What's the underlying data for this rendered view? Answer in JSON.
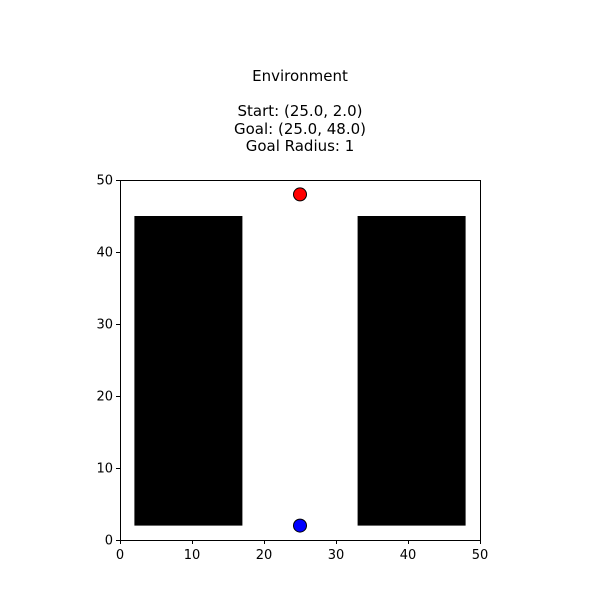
{
  "chart_data": {
    "type": "scatter",
    "title": "Environment",
    "subtitle_lines": [
      "Start: (25.0, 2.0)",
      "Goal: (25.0, 48.0)",
      "Goal Radius: 1"
    ],
    "xlabel": "",
    "ylabel": "",
    "xlim": [
      0,
      50
    ],
    "ylim": [
      0,
      50
    ],
    "xticks": [
      0,
      10,
      20,
      30,
      40,
      50
    ],
    "yticks": [
      0,
      10,
      20,
      30,
      40,
      50
    ],
    "grid": false,
    "obstacles": [
      {
        "x0": 2,
        "y0": 2,
        "x1": 17,
        "y1": 45,
        "color": "#000000"
      },
      {
        "x0": 33,
        "y0": 2,
        "x1": 48,
        "y1": 45,
        "color": "#000000"
      }
    ],
    "points": [
      {
        "role": "start",
        "x": 25.0,
        "y": 2.0,
        "color": "#0000ff"
      },
      {
        "role": "goal",
        "x": 25.0,
        "y": 48.0,
        "color": "#ff0000"
      }
    ]
  }
}
